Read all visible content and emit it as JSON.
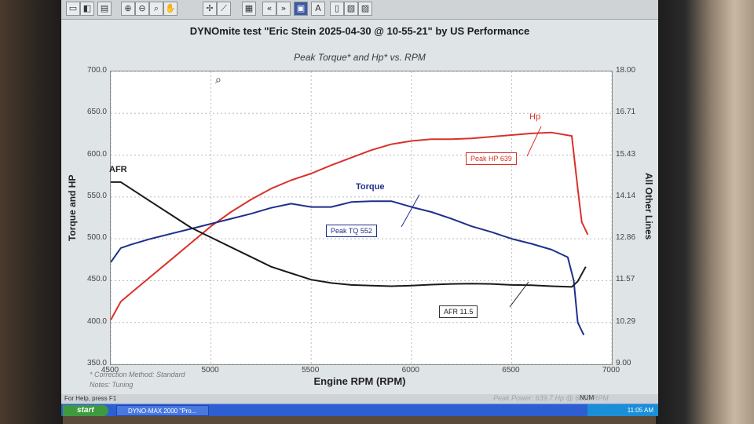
{
  "toolbar": {
    "icons": [
      "file-icon",
      "save-icon",
      "print-icon",
      "zoom-in-icon",
      "zoom-out-icon",
      "zoom-icon",
      "hand-icon",
      "cursor-icon",
      "ruler-icon",
      "grid-icon",
      "prev-icon",
      "next-icon",
      "window-icon",
      "text-icon",
      "copy-icon",
      "export-icon"
    ],
    "text_button": "A"
  },
  "title": "DYNOmite test \"Eric Stein 2025-04-30 @ 10-55-21\" by US Performance",
  "chart_data": {
    "type": "line",
    "title": "Peak Torque* and Hp* vs. RPM",
    "xlabel": "Engine RPM (RPM)",
    "ylabel": "Torque and HP",
    "y2label": "All Other Lines",
    "xlim": [
      4500,
      7000
    ],
    "ylim": [
      350,
      700
    ],
    "y2lim": [
      9.0,
      18.0
    ],
    "x_ticks": [
      "4500",
      "5000",
      "5500",
      "6000",
      "6500",
      "7000"
    ],
    "y_ticks": [
      "350.0",
      "400.0",
      "450.0",
      "500.0",
      "550.0",
      "600.0",
      "650.0",
      "700.0"
    ],
    "y2_ticks": [
      "9.00",
      "10.29",
      "11.57",
      "12.86",
      "14.14",
      "15.43",
      "16.71",
      "18.00"
    ],
    "grid": true,
    "series": [
      {
        "name": "Hp",
        "color": "#d8322a",
        "axis": "left",
        "x": [
          4500,
          4550,
          4600,
          4700,
          4800,
          4900,
          5000,
          5100,
          5200,
          5300,
          5400,
          5500,
          5600,
          5700,
          5800,
          5900,
          6000,
          6100,
          6200,
          6300,
          6400,
          6500,
          6600,
          6700,
          6800,
          6830,
          6850,
          6880
        ],
        "y": [
          403,
          425,
          435,
          455,
          475,
          495,
          515,
          532,
          547,
          560,
          570,
          578,
          588,
          597,
          606,
          613,
          617,
          619,
          619,
          620,
          622,
          624,
          626,
          627,
          623,
          560,
          520,
          505
        ]
      },
      {
        "name": "Torque",
        "color": "#1f2f8a",
        "axis": "left",
        "x": [
          4500,
          4550,
          4600,
          4700,
          4800,
          4900,
          5000,
          5100,
          5200,
          5300,
          5400,
          5500,
          5600,
          5700,
          5800,
          5900,
          6000,
          6100,
          6200,
          6300,
          6400,
          6500,
          6600,
          6700,
          6780,
          6810,
          6830,
          6860
        ],
        "y": [
          472,
          489,
          493,
          500,
          506,
          512,
          518,
          524,
          530,
          537,
          542,
          538,
          538,
          544,
          545,
          545,
          538,
          532,
          524,
          515,
          508,
          500,
          494,
          487,
          478,
          450,
          400,
          385
        ]
      },
      {
        "name": "AFR",
        "color": "#1a1a1a",
        "axis": "right",
        "x": [
          4500,
          4550,
          4600,
          4700,
          4800,
          4900,
          5000,
          5100,
          5200,
          5300,
          5400,
          5500,
          5600,
          5700,
          5800,
          5900,
          6000,
          6100,
          6200,
          6300,
          6400,
          6500,
          6600,
          6700,
          6800,
          6830,
          6870
        ],
        "y": [
          14.6,
          14.6,
          14.4,
          14.0,
          13.6,
          13.2,
          12.9,
          12.6,
          12.3,
          12.0,
          11.8,
          11.6,
          11.5,
          11.44,
          11.42,
          11.4,
          11.42,
          11.45,
          11.47,
          11.48,
          11.47,
          11.44,
          11.43,
          11.4,
          11.38,
          11.55,
          12.0
        ]
      }
    ],
    "series_labels": [
      "Hp",
      "Torque",
      "AFR"
    ],
    "annotations": [
      "Peak HP 639",
      "Peak TQ 552",
      "AFR 11.5"
    ]
  },
  "notes": [
    "* Correction Method: Standard",
    "Notes: Tuning"
  ],
  "footer_peak": "Peak Power: 639.7 Hp @ 6650 RPM",
  "status_help": "For Help, press F1",
  "status_num": "NUM",
  "taskbar": {
    "start": "start",
    "task": "DYNO-MAX 2000 \"Pro...",
    "clock": "11:05 AM"
  }
}
